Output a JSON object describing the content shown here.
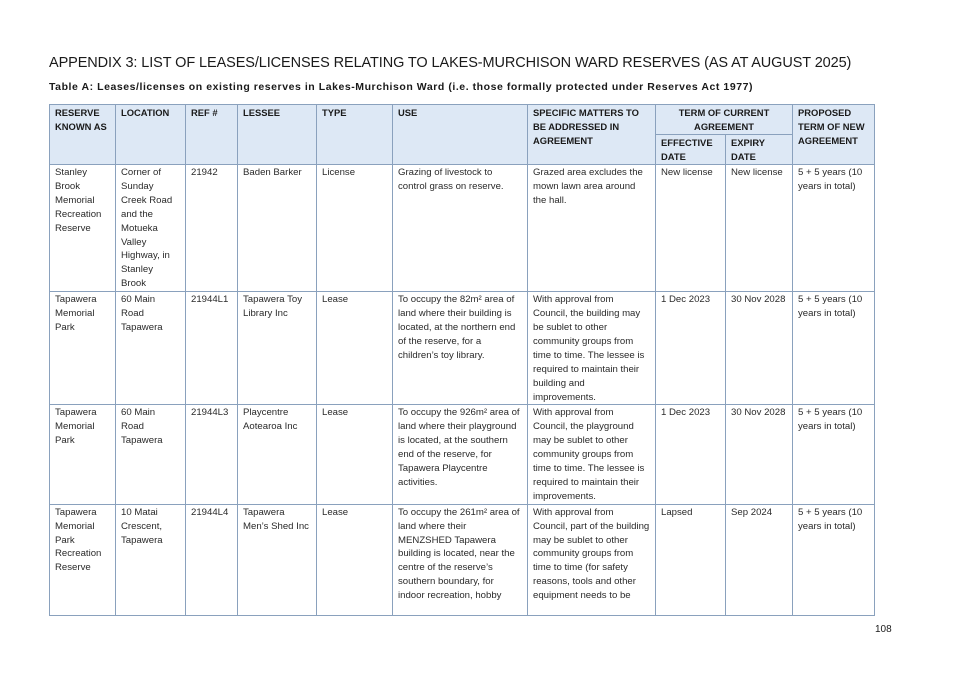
{
  "appendix_title": "APPENDIX 3: LIST OF LEASES/LICENSES RELATING TO LAKES-MURCHISON WARD RESERVES (AS AT AUGUST 2025)",
  "table_title": "Table A: Leases/licenses on existing reserves in Lakes-Murchison Ward (i.e. those formally protected under Reserves Act 1977)",
  "headers": {
    "reserve": "RESERVE KNOWN AS",
    "location": "LOCATION",
    "ref": "REF #",
    "lessee": "LESSEE",
    "type": "TYPE",
    "use": "USE",
    "matters": "SPECIFIC MATTERS TO BE ADDRESSED IN AGREEMENT",
    "term_current": "TERM OF CURRENT AGREEMENT",
    "effective": "EFFECTIVE DATE",
    "expiry": "EXPIRY DATE",
    "proposed": "PROPOSED TERM OF NEW AGREEMENT"
  },
  "rows": [
    {
      "reserve": "Stanley Brook Memorial Recreation Reserve",
      "location": "Corner of Sunday Creek Road and the Motueka Valley Highway, in Stanley Brook",
      "ref": "21942",
      "lessee": "Baden Barker",
      "type": "License",
      "use": "Grazing of livestock to control grass on reserve.",
      "matters": "Grazed area excludes the mown lawn area around the hall.",
      "effective": "New license",
      "expiry": "New license",
      "proposed": "5 + 5 years (10 years in total)"
    },
    {
      "reserve": "Tapawera Memorial Park",
      "location": "60 Main Road Tapawera",
      "ref": "21944L1",
      "lessee": "Tapawera Toy Library Inc",
      "type": "Lease",
      "use": "To occupy the 82m² area of land where their building is located, at the northern end of the reserve, for a children’s toy library.",
      "matters": "With approval from Council, the building may be sublet to other community groups from time to time. The lessee is required to maintain their building and improvements.",
      "effective": "1 Dec 2023",
      "expiry": "30 Nov 2028",
      "proposed": "5 + 5 years (10 years in total)"
    },
    {
      "reserve": "Tapawera Memorial Park",
      "location": "60 Main Road Tapawera",
      "ref": "21944L3",
      "lessee": "Playcentre Aotearoa Inc",
      "type": "Lease",
      "use": "To occupy the 926m² area of land where their playground is located, at the southern end of the reserve, for Tapawera Playcentre activities.",
      "matters": "With approval from Council, the playground may be sublet to other community groups from time to time. The lessee is required to maintain their improvements.",
      "effective": "1 Dec 2023",
      "expiry": "30 Nov 2028",
      "proposed": "5 + 5 years (10 years in total)"
    },
    {
      "reserve": "Tapawera Memorial Park Recreation Reserve",
      "location": "10 Matai Crescent, Tapawera",
      "ref": "21944L4",
      "lessee": "Tapawera Men’s Shed Inc",
      "type": "Lease",
      "use": "To occupy the 261m² area of land where their MENZSHED Tapawera building is located, near the centre of the reserve’s southern boundary, for indoor recreation, hobby",
      "matters": "With approval from Council, part of the building may be sublet to other community groups from time to time (for safety reasons, tools and other equipment needs to be",
      "effective": "Lapsed",
      "expiry": "Sep 2024",
      "proposed": "5 + 5 years (10 years in total)"
    }
  ],
  "page_number": "108"
}
